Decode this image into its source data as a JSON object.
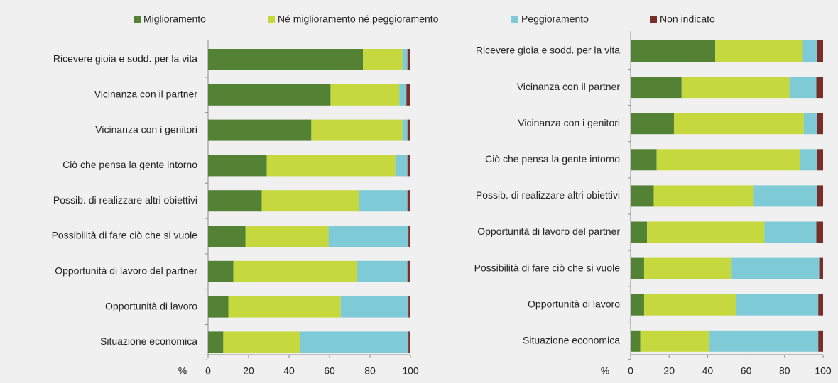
{
  "chart_data": [
    {
      "type": "stacked_bar_horizontal",
      "xlabel": "%",
      "categories": [
        "Ricevere gioia e sodd. per la vita",
        "Vicinanza con il partner",
        "Vicinanza con i genitori",
        "Ciò che pensa la gente intorno",
        "Possib. di realizzare altri obiettivi",
        "Possibilità di fare ciò che si vuole",
        "Opportunità di lavoro del partner",
        "Opportunità di lavoro",
        "Situazione economica"
      ],
      "series": [
        {
          "name": "Miglioramento",
          "color": "#548235",
          "values": [
            76.5,
            60.5,
            51,
            29,
            26.5,
            18.5,
            12.5,
            10,
            7.5
          ]
        },
        {
          "name": "Né miglioramento né peggioramento",
          "color": "#c5d93f",
          "values": [
            19.5,
            34,
            45,
            63.5,
            48,
            41,
            61,
            55.5,
            38
          ]
        },
        {
          "name": "Peggioramento",
          "color": "#7ecad6",
          "values": [
            2.5,
            3.5,
            2.5,
            6,
            24,
            39.5,
            25,
            33.5,
            53.5
          ]
        },
        {
          "name": "Non indicato",
          "color": "#7b2e28",
          "values": [
            1.5,
            2,
            1.5,
            1.5,
            1.5,
            1,
            1.5,
            1,
            1
          ]
        }
      ],
      "xlim": [
        0,
        100
      ],
      "xticks": [
        0,
        20,
        40,
        60,
        80,
        100
      ],
      "legend": "top"
    },
    {
      "type": "stacked_bar_horizontal",
      "xlabel": "%",
      "categories": [
        "Ricevere gioia e sodd. per la vita",
        "Vicinanza con il partner",
        "Vicinanza con i genitori",
        "Ciò che pensa la gente intorno",
        "Possib. di realizzare altri obiettivi",
        "Opportunità di lavoro del partner",
        "Possibilità di fare ciò che si vuole",
        "Opportunità di lavoro",
        "Situazione economica"
      ],
      "series": [
        {
          "color": "#548235",
          "values": [
            44,
            26.5,
            22.5,
            13.5,
            12,
            8.5,
            7,
            7,
            5
          ]
        },
        {
          "color": "#c5d93f",
          "values": [
            45.5,
            56,
            67.5,
            74.5,
            52,
            61,
            45.5,
            48,
            36
          ]
        },
        {
          "color": "#7ecad6",
          "values": [
            7.5,
            14,
            7,
            9,
            33,
            27,
            45.5,
            42.5,
            56.5
          ]
        },
        {
          "color": "#7b2e28",
          "values": [
            3,
            3.5,
            3,
            3,
            3,
            3.5,
            2,
            2.5,
            2.5
          ]
        }
      ],
      "xlim": [
        0,
        100
      ],
      "xticks": [
        0,
        20,
        40,
        60,
        80,
        100
      ]
    }
  ]
}
